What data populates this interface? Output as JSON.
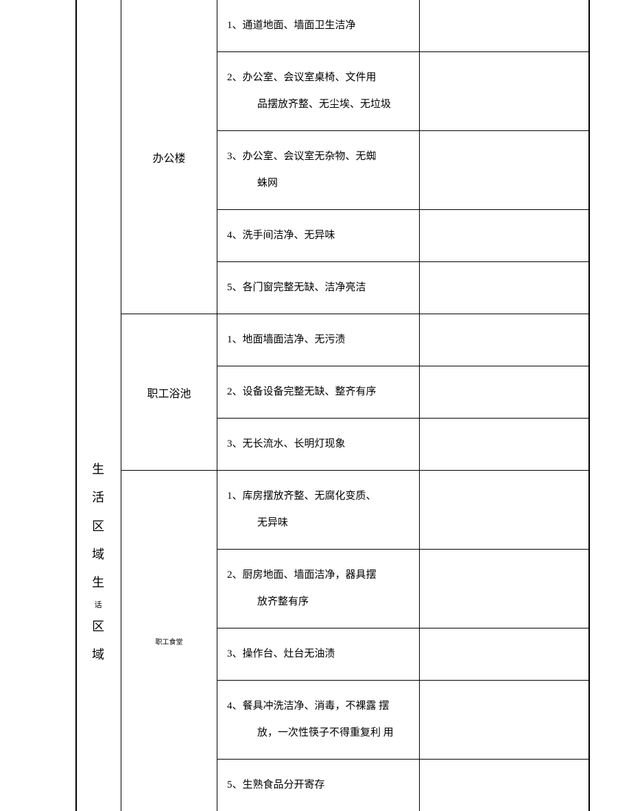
{
  "section1": {
    "category": "办公楼",
    "items": [
      "1、通道地面、墙面卫生洁净",
      "2、办公室、会议室桌椅、文件用品摆放齐整、无尘埃、无垃圾",
      "3、办公室、会议室无杂物、无蜘蛛网",
      "4、洗手间洁净、无异味",
      "5、各门窗完整无缺、洁净亮洁"
    ]
  },
  "section2": {
    "region_label": "生活区域生活区域",
    "region_label_chars": [
      "生",
      "活",
      "区",
      "域",
      "生",
      "活",
      "区",
      "域"
    ],
    "region_small_char": "话",
    "subcategory1": {
      "name": "职工浴池",
      "items": [
        "1、地面墙面洁净、无污渍",
        "2、设备设备完整无缺、整齐有序",
        "3、无长流水、长明灯现象"
      ]
    },
    "subcategory2": {
      "name": "职工食堂",
      "items": [
        "1、库房摆放齐整、无腐化变质、无异味",
        "2、厨房地面、墙面洁净，器具摆放齐整有序",
        "3、操作台、灶台无油渍",
        "4、餐具冲洗洁净、消毒，不裸露 摆放，一次性筷子不得重复利 用",
        "5、生熟食品分开寄存"
      ]
    }
  }
}
